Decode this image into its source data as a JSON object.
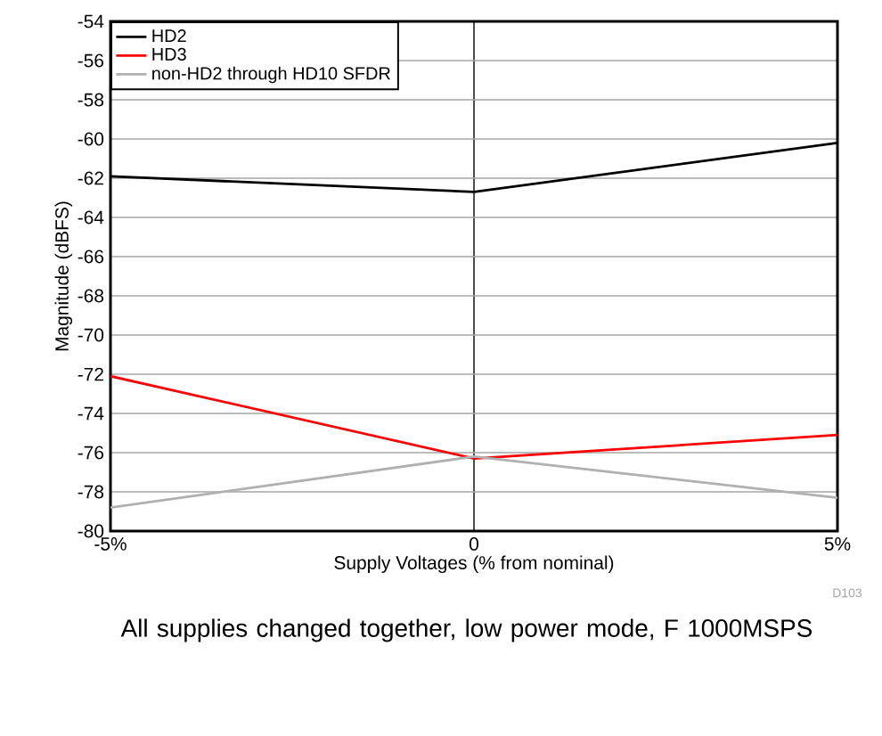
{
  "chart_data": {
    "type": "line",
    "x": [
      -5,
      0,
      5
    ],
    "xlabel": "Supply Voltages (% from nominal)",
    "ylabel": "Magnitude (dBFS)",
    "series": [
      {
        "name": "HD2",
        "color": "#000000",
        "values": [
          -61.9,
          -62.7,
          -60.2
        ]
      },
      {
        "name": "HD3",
        "color": "#ff0000",
        "values": [
          -72.1,
          -76.3,
          -75.1
        ]
      },
      {
        "name": "non-HD2 through HD10 SFDR",
        "color": "#b0b0b0",
        "values": [
          -78.8,
          -76.2,
          -78.3
        ]
      }
    ],
    "xlim": [
      -5,
      5
    ],
    "ylim": [
      -80,
      -54
    ],
    "xticks": [
      {
        "value": -5,
        "label": "-5%"
      },
      {
        "value": 0,
        "label": "0"
      },
      {
        "value": 5,
        "label": "5%"
      }
    ],
    "yticks": [
      -80,
      -78,
      -76,
      -74,
      -72,
      -70,
      -68,
      -66,
      -64,
      -62,
      -60,
      -58,
      -56,
      -54
    ],
    "grid": true,
    "legend": "top left",
    "marker": "none",
    "line_style": "solid",
    "annotations": [
      "D103",
      "All supplies changed together, low power mode, F 1000MSPS"
    ]
  }
}
